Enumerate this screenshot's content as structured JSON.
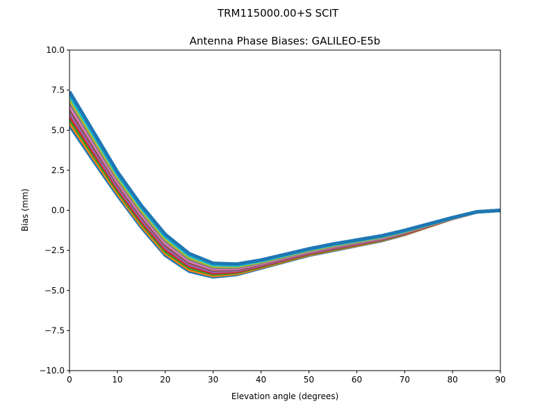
{
  "chart_data": {
    "type": "line",
    "suptitle": "TRM115000.00+S  SCIT",
    "title": "Antenna Phase Biases: GALILEO-E5b",
    "xlabel": "Elevation angle (degrees)",
    "ylabel": "Bias (mm)",
    "xlim": [
      0,
      90
    ],
    "ylim": [
      -10,
      10
    ],
    "xticks": [
      0,
      10,
      20,
      30,
      40,
      50,
      60,
      70,
      80,
      90
    ],
    "xtick_labels": [
      "0",
      "10",
      "20",
      "30",
      "40",
      "50",
      "60",
      "70",
      "80",
      "90"
    ],
    "yticks": [
      -10,
      -7.5,
      -5,
      -2.5,
      0,
      2.5,
      5,
      7.5,
      10
    ],
    "ytick_labels": [
      "−10.0",
      "−7.5",
      "−5.0",
      "−2.5",
      "0.0",
      "2.5",
      "5.0",
      "7.5",
      "10.0"
    ],
    "grid": false,
    "legend": "none",
    "x": [
      0,
      5,
      10,
      15,
      20,
      25,
      30,
      35,
      40,
      45,
      50,
      55,
      60,
      65,
      70,
      75,
      80,
      85,
      90
    ],
    "colors": [
      "#1f77b4",
      "#ff7f0e",
      "#2ca02c",
      "#d62728",
      "#9467bd",
      "#8c564b",
      "#e377c2",
      "#7f7f7f",
      "#bcbd22",
      "#17becf"
    ],
    "series": [
      {
        "values": [
          5.3,
          3.1,
          0.95,
          -1.05,
          -2.8,
          -3.8,
          -4.15,
          -4.0,
          -3.6,
          -3.2,
          -2.8,
          -2.5,
          -2.2,
          -1.9,
          -1.5,
          -1.0,
          -0.5,
          -0.1,
          0
        ]
      },
      {
        "values": [
          5.51,
          3.28,
          1.1,
          -0.92,
          -2.67,
          -3.69,
          -4.07,
          -3.94,
          -3.55,
          -3.16,
          -2.76,
          -2.46,
          -2.17,
          -1.87,
          -1.48,
          -0.99,
          -0.5,
          -0.1,
          0
        ]
      },
      {
        "values": [
          5.72,
          3.46,
          1.24,
          -0.78,
          -2.54,
          -3.58,
          -3.98,
          -3.87,
          -3.5,
          -3.11,
          -2.72,
          -2.42,
          -2.13,
          -1.84,
          -1.45,
          -0.97,
          -0.49,
          -0.1,
          0
        ]
      },
      {
        "values": [
          5.93,
          3.64,
          1.39,
          -0.65,
          -2.41,
          -3.47,
          -3.9,
          -3.81,
          -3.45,
          -3.07,
          -2.68,
          -2.38,
          -2.1,
          -1.81,
          -1.43,
          -0.96,
          -0.49,
          -0.1,
          0
        ]
      },
      {
        "values": [
          6.14,
          3.82,
          1.53,
          -0.51,
          -2.28,
          -3.36,
          -3.81,
          -3.74,
          -3.4,
          -3.02,
          -2.64,
          -2.34,
          -2.06,
          -1.78,
          -1.4,
          -0.94,
          -0.48,
          -0.1,
          0
        ]
      },
      {
        "values": [
          6.35,
          4.0,
          1.68,
          -0.38,
          -2.15,
          -3.25,
          -3.73,
          -3.68,
          -3.35,
          -2.98,
          -2.6,
          -2.3,
          -2.03,
          -1.75,
          -1.38,
          -0.93,
          -0.48,
          -0.1,
          0
        ]
      },
      {
        "values": [
          6.56,
          4.18,
          1.82,
          -0.24,
          -2.02,
          -3.14,
          -3.64,
          -3.61,
          -3.3,
          -2.93,
          -2.56,
          -2.26,
          -1.99,
          -1.72,
          -1.35,
          -0.91,
          -0.47,
          -0.1,
          0
        ]
      },
      {
        "values": [
          6.77,
          4.36,
          1.97,
          -0.11,
          -1.89,
          -3.03,
          -3.56,
          -3.55,
          -3.25,
          -2.89,
          -2.52,
          -2.22,
          -1.96,
          -1.69,
          -1.33,
          -0.9,
          -0.47,
          -0.1,
          0
        ]
      },
      {
        "values": [
          6.98,
          4.54,
          2.11,
          0.03,
          -1.76,
          -2.92,
          -3.47,
          -3.48,
          -3.2,
          -2.84,
          -2.48,
          -2.18,
          -1.92,
          -1.66,
          -1.3,
          -0.88,
          -0.46,
          -0.1,
          0
        ]
      },
      {
        "values": [
          7.19,
          4.72,
          2.26,
          0.17,
          -1.63,
          -2.81,
          -3.39,
          -3.42,
          -3.15,
          -2.8,
          -2.44,
          -2.14,
          -1.89,
          -1.63,
          -1.28,
          -0.87,
          -0.46,
          -0.1,
          0
        ]
      },
      {
        "values": [
          7.4,
          4.9,
          2.4,
          0.3,
          -1.5,
          -2.7,
          -3.3,
          -3.35,
          -3.1,
          -2.75,
          -2.4,
          -2.1,
          -1.85,
          -1.6,
          -1.25,
          -0.85,
          -0.45,
          -0.1,
          0
        ]
      }
    ]
  }
}
